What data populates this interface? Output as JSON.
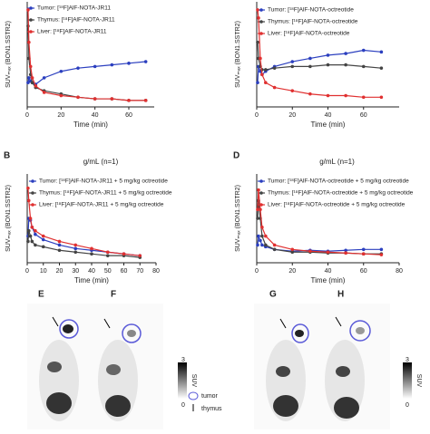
{
  "chart_data": [
    {
      "type": "line",
      "x_label": "Time (min)",
      "y_label": "SUVₘₐₓ (BON1.SSTR2)",
      "x": [
        0.5,
        1,
        2,
        3,
        5,
        10,
        20,
        30,
        40,
        50,
        60,
        70
      ],
      "xlim": [
        0,
        75
      ],
      "ylim": [
        0,
        6.5
      ],
      "xticks": [
        0,
        20,
        40,
        60
      ],
      "series": [
        {
          "name": "Tumor: [¹⁸F]AlF-NOTA-JR11",
          "color": "#2b3fbf",
          "values": [
            1.5,
            1.8,
            1.6,
            1.5,
            1.4,
            1.8,
            2.2,
            2.4,
            2.5,
            2.6,
            2.7,
            2.8
          ]
        },
        {
          "name": "Thymus: [¹⁸F]AlF-NOTA-JR11",
          "color": "#444444",
          "values": [
            5,
            3,
            2,
            1.5,
            1.2,
            1,
            0.8,
            0.6,
            0.5,
            0.5,
            0.4,
            0.4
          ]
        },
        {
          "name": "Liver: [¹⁸F]AlF-NOTA-JR11",
          "color": "#e03030",
          "values": [
            6,
            4,
            2.5,
            1.8,
            1.3,
            0.9,
            0.7,
            0.6,
            0.5,
            0.5,
            0.4,
            0.4
          ]
        }
      ]
    },
    {
      "type": "line",
      "x_label": "Time (min)",
      "y_label": "SUVₘₐₓ (BON1.SSTR2)",
      "x": [
        0.5,
        1,
        2,
        3,
        5,
        10,
        20,
        30,
        40,
        50,
        60,
        70
      ],
      "xlim": [
        0,
        80
      ],
      "ylim": [
        0,
        6.5
      ],
      "xticks": [
        0,
        20,
        40,
        60
      ],
      "series": [
        {
          "name": "Tumor: [¹⁸F]AlF-NOTA-octreotide",
          "color": "#2b3fbf",
          "values": [
            1.5,
            2.5,
            2.2,
            2,
            2.2,
            2.5,
            2.8,
            3,
            3.2,
            3.3,
            3.5,
            3.4
          ]
        },
        {
          "name": "Thymus: [¹⁸F]AlF-NOTA-octreotide",
          "color": "#444444",
          "values": [
            4,
            3,
            2.5,
            2.3,
            2.3,
            2.4,
            2.5,
            2.5,
            2.6,
            2.6,
            2.5,
            2.4
          ]
        },
        {
          "name": "Liver: [¹⁸F]AlF-NOTA-octreotide",
          "color": "#e03030",
          "values": [
            6,
            5.5,
            3,
            2,
            1.5,
            1.2,
            1,
            0.8,
            0.7,
            0.7,
            0.6,
            0.6
          ]
        }
      ]
    },
    {
      "type": "line",
      "panel": "B",
      "title": "g/mL (n=1)",
      "x_label": "Time (min)",
      "y_label": "SUVₘₐₓ (BON1.SSTR2)",
      "x": [
        0.5,
        1,
        2,
        3,
        5,
        10,
        20,
        30,
        40,
        50,
        60,
        70
      ],
      "xlim": [
        0,
        80
      ],
      "ylim": [
        0,
        5
      ],
      "xticks": [
        0,
        10,
        20,
        30,
        40,
        50,
        60,
        70,
        80
      ],
      "series": [
        {
          "name": "Tumor: [¹⁸F]AlF-NOTA-JR11 + 5 mg/kg octreotide",
          "color": "#2b3fbf",
          "values": [
            1.5,
            2.5,
            2.4,
            2,
            1.6,
            1.3,
            1,
            0.8,
            0.7,
            0.6,
            0.5,
            0.4
          ]
        },
        {
          "name": "Thymus: [¹⁸F]AlF-NOTA-JR11 + 5 mg/kg octreotide",
          "color": "#444444",
          "values": [
            1.2,
            1.8,
            1.5,
            1.2,
            1,
            0.9,
            0.7,
            0.6,
            0.5,
            0.4,
            0.4,
            0.3
          ]
        },
        {
          "name": "Liver: [¹⁸F]AlF-NOTA-JR11 + 5 mg/kg octreotide",
          "color": "#e03030",
          "values": [
            4.2,
            3.5,
            2.5,
            2,
            1.8,
            1.5,
            1.2,
            1,
            0.8,
            0.6,
            0.5,
            0.4
          ]
        }
      ]
    },
    {
      "type": "line",
      "panel": "D",
      "title": "g/mL (n=1)",
      "x_label": "Time (min)",
      "y_label": "SUVₘₐₓ (BON1.SSTR2)",
      "x": [
        0.5,
        1,
        2,
        3,
        5,
        10,
        20,
        30,
        40,
        50,
        60,
        70
      ],
      "xlim": [
        0,
        80
      ],
      "ylim": [
        0,
        10
      ],
      "xticks": [
        0,
        20,
        40,
        60,
        80
      ],
      "series": [
        {
          "name": "Tumor: [¹⁸F]AlF-NOTA-octreotide + 5 mg/kg octreotide",
          "color": "#2b3fbf",
          "values": [
            2,
            3,
            2.5,
            2,
            1.8,
            1.5,
            1.3,
            1.4,
            1.3,
            1.4,
            1.5,
            1.5
          ]
        },
        {
          "name": "Thymus: [¹⁸F]AlF-NOTA-octreotide + 5 mg/kg octreotide",
          "color": "#444444",
          "values": [
            5,
            7,
            5,
            3,
            2,
            1.5,
            1.2,
            1.2,
            1.1,
            1.1,
            1,
            1
          ]
        },
        {
          "name": "Liver: [¹⁸F]AlF-NOTA-octreotide + 5 mg/kg octreotide",
          "color": "#e03030",
          "values": [
            6,
            8.2,
            6,
            4,
            3,
            2,
            1.5,
            1.3,
            1.2,
            1.1,
            1,
            0.9
          ]
        }
      ]
    }
  ],
  "images": {
    "panels": [
      "E",
      "F",
      "G",
      "H"
    ],
    "colorbar": {
      "max": "3",
      "min": "0",
      "label": "SUV"
    },
    "legend": [
      "tumor",
      "thymus"
    ]
  }
}
